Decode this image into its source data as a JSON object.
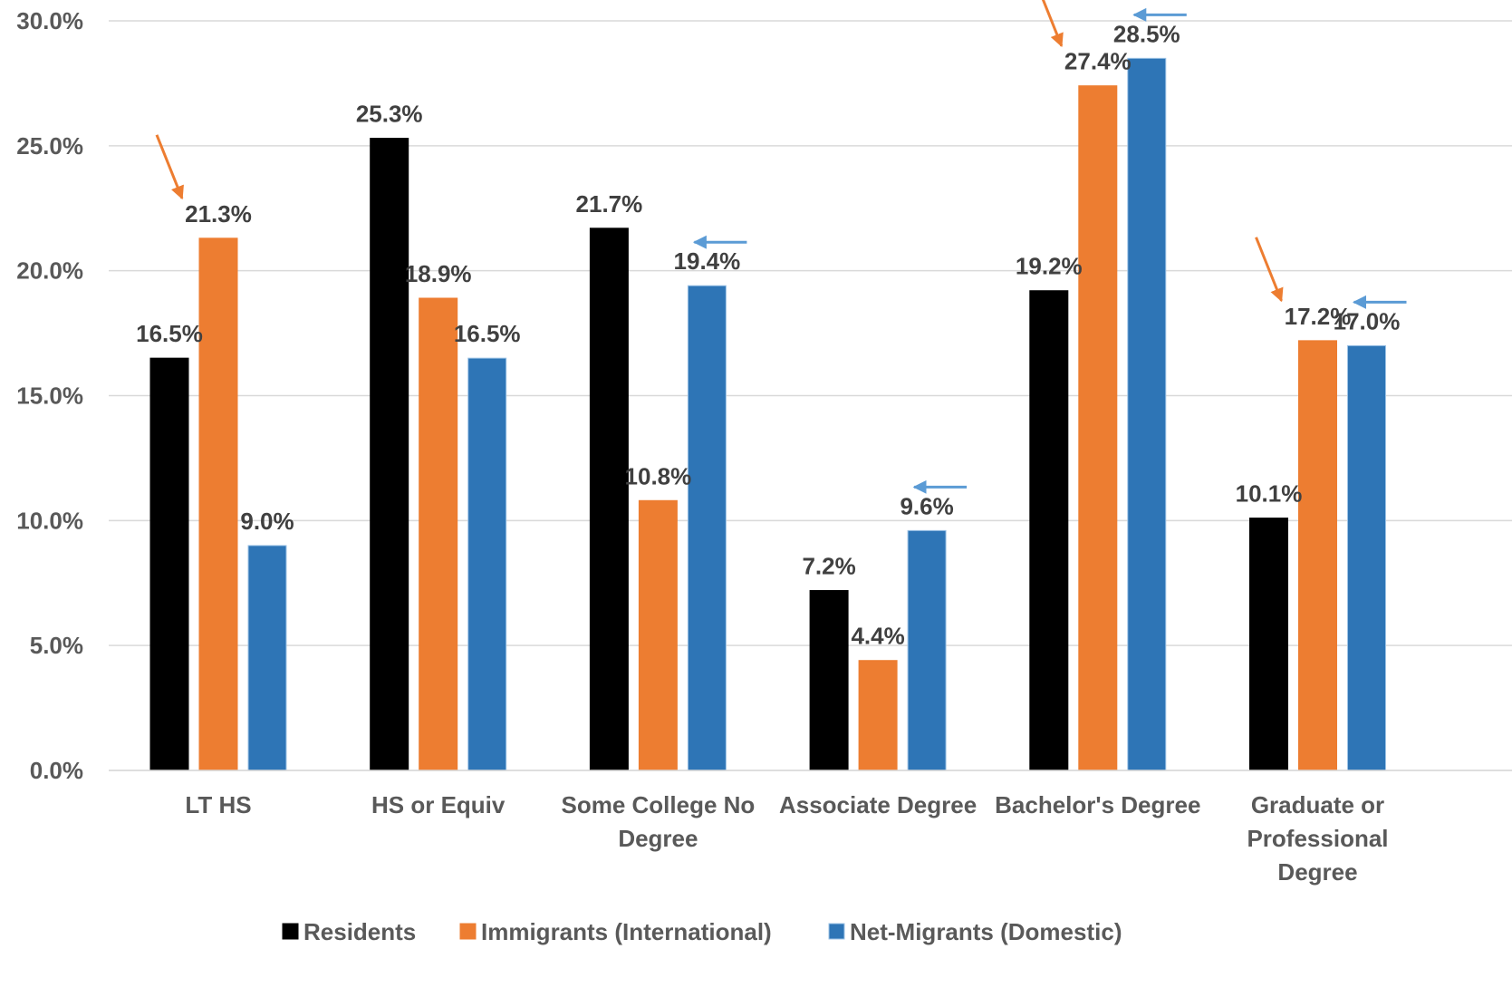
{
  "chart_data": {
    "type": "bar",
    "categories": [
      [
        "LT HS"
      ],
      [
        "HS or Equiv"
      ],
      [
        "Some College No",
        "Degree"
      ],
      [
        "Associate Degree"
      ],
      [
        "Bachelor's Degree"
      ],
      [
        "Graduate or",
        "Professional",
        "Degree"
      ]
    ],
    "series": [
      {
        "name": "Residents",
        "color": "#000000",
        "values": [
          16.5,
          25.3,
          21.7,
          7.2,
          19.2,
          10.1
        ],
        "labels": [
          "16.5%",
          "25.3%",
          "21.7%",
          "7.2%",
          "19.2%",
          "10.1%"
        ]
      },
      {
        "name": "Immigrants (International)",
        "color": "#ED7D31",
        "values": [
          21.3,
          18.9,
          10.8,
          4.4,
          27.4,
          17.2
        ],
        "labels": [
          "21.3%",
          "18.9%",
          "10.8%",
          "4.4%",
          "27.4%",
          "17.2%"
        ]
      },
      {
        "name": "Net-Migrants (Domestic)",
        "color": "#2E75B6",
        "values": [
          9.0,
          16.5,
          19.4,
          9.6,
          28.5,
          17.0
        ],
        "labels": [
          "9.0%",
          "16.5%",
          "19.4%",
          "9.6%",
          "28.5%",
          "17.0%"
        ]
      }
    ],
    "yticks": [
      "0.0%",
      "5.0%",
      "10.0%",
      "15.0%",
      "20.0%",
      "25.0%",
      "30.0%"
    ],
    "ylim": [
      0,
      30
    ],
    "grid": true,
    "legend_position": "bottom",
    "annotations": [
      {
        "type": "arrow",
        "color": "#ED7D31",
        "category": 0,
        "points_to_series": "Immigrants (International)"
      },
      {
        "type": "arrow",
        "color": "#5B9BD5",
        "category": 2,
        "points_to_series": "Net-Migrants (Domestic)"
      },
      {
        "type": "arrow",
        "color": "#5B9BD5",
        "category": 3,
        "points_to_series": "Net-Migrants (Domestic)"
      },
      {
        "type": "arrow",
        "color": "#ED7D31",
        "category": 4,
        "points_to_series": "Immigrants (International)"
      },
      {
        "type": "arrow",
        "color": "#5B9BD5",
        "category": 4,
        "points_to_series": "Net-Migrants (Domestic)"
      },
      {
        "type": "arrow",
        "color": "#ED7D31",
        "category": 5,
        "points_to_series": "Immigrants (International)"
      },
      {
        "type": "arrow",
        "color": "#5B9BD5",
        "category": 5,
        "points_to_series": "Net-Migrants (Domestic)"
      }
    ]
  }
}
